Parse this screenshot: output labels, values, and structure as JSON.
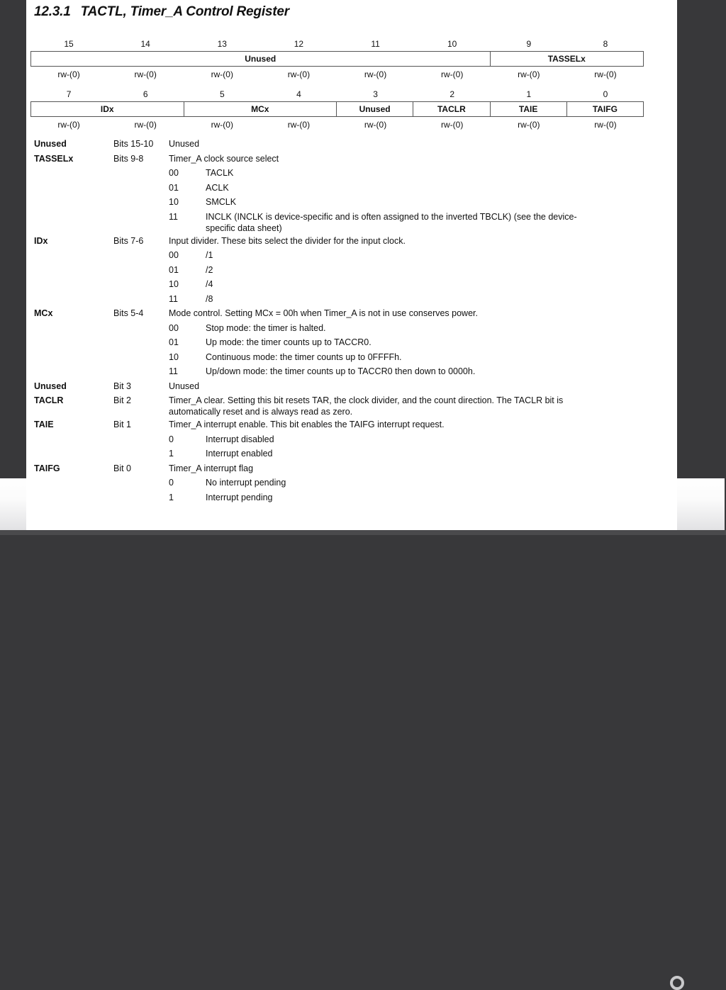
{
  "title": {
    "number": "12.3.1",
    "text": "TACTL, Timer_A Control Register"
  },
  "upper_bits": [
    "15",
    "14",
    "13",
    "12",
    "11",
    "10",
    "9",
    "8"
  ],
  "upper_fields": [
    {
      "label": "Unused",
      "span": 6
    },
    {
      "label": "TASSELx",
      "span": 2
    }
  ],
  "upper_access": [
    "rw-(0)",
    "rw-(0)",
    "rw-(0)",
    "rw-(0)",
    "rw-(0)",
    "rw-(0)",
    "rw-(0)",
    "rw-(0)"
  ],
  "lower_bits": [
    "7",
    "6",
    "5",
    "4",
    "3",
    "2",
    "1",
    "0"
  ],
  "lower_fields": [
    {
      "label": "IDx",
      "span": 2
    },
    {
      "label": "MCx",
      "span": 2
    },
    {
      "label": "Unused",
      "span": 1
    },
    {
      "label": "TACLR",
      "span": 1
    },
    {
      "label": "TAIE",
      "span": 1
    },
    {
      "label": "TAIFG",
      "span": 1
    }
  ],
  "lower_access": [
    "rw-(0)",
    "rw-(0)",
    "rw-(0)",
    "rw-(0)",
    "rw-(0)",
    "rw-(0)",
    "rw-(0)",
    "rw-(0)"
  ],
  "fields": [
    {
      "name": "Unused",
      "bits": "Bits 15-10",
      "desc": "Unused",
      "options": []
    },
    {
      "name": "TASSELx",
      "bits": "Bits 9-8",
      "desc": "Timer_A clock source select",
      "options": [
        {
          "code": "00",
          "meaning": "TACLK"
        },
        {
          "code": "01",
          "meaning": "ACLK"
        },
        {
          "code": "10",
          "meaning": "SMCLK"
        },
        {
          "code": "11",
          "meaning": "INCLK (INCLK is device-specific and is often assigned to the inverted TBCLK) (see the device-specific data sheet)"
        }
      ]
    },
    {
      "name": "IDx",
      "bits": "Bits 7-6",
      "desc": "Input divider. These bits select the divider for the input clock.",
      "options": [
        {
          "code": "00",
          "meaning": "/1"
        },
        {
          "code": "01",
          "meaning": "/2"
        },
        {
          "code": "10",
          "meaning": "/4"
        },
        {
          "code": "11",
          "meaning": "/8"
        }
      ]
    },
    {
      "name": "MCx",
      "bits": "Bits 5-4",
      "desc": "Mode control. Setting MCx = 00h when Timer_A is not in use conserves power.",
      "options": [
        {
          "code": "00",
          "meaning": "Stop mode: the timer is halted."
        },
        {
          "code": "01",
          "meaning": "Up mode: the timer counts up to TACCR0."
        },
        {
          "code": "10",
          "meaning": "Continuous mode: the timer counts up to 0FFFFh."
        },
        {
          "code": "11",
          "meaning": "Up/down mode: the timer counts up to TACCR0 then down to 0000h."
        }
      ]
    },
    {
      "name": "Unused",
      "bits": "Bit 3",
      "desc": "Unused",
      "options": []
    },
    {
      "name": "TACLR",
      "bits": "Bit 2",
      "desc": "Timer_A clear. Setting this bit resets TAR, the clock divider, and the count direction. The TACLR bit is automatically reset and is always read as zero.",
      "options": []
    },
    {
      "name": "TAIE",
      "bits": "Bit 1",
      "desc": "Timer_A interrupt enable. This bit enables the TAIFG interrupt request.",
      "options": [
        {
          "code": "0",
          "meaning": "Interrupt disabled"
        },
        {
          "code": "1",
          "meaning": "Interrupt enabled"
        }
      ]
    },
    {
      "name": "TAIFG",
      "bits": "Bit 0",
      "desc": "Timer_A interrupt flag",
      "options": [
        {
          "code": "0",
          "meaning": "No interrupt pending"
        },
        {
          "code": "1",
          "meaning": "Interrupt pending"
        }
      ]
    }
  ]
}
